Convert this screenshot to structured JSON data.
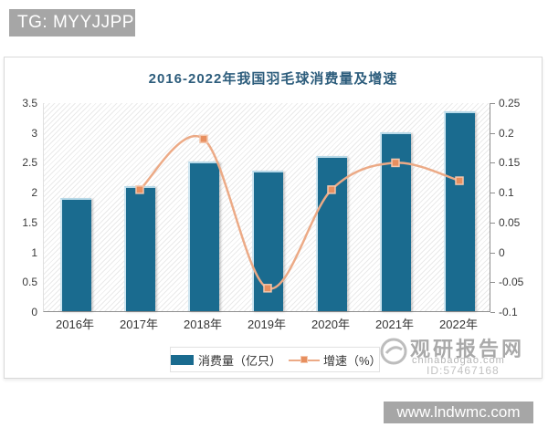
{
  "badges": {
    "top_left": "TG: MYYJJPP",
    "bottom_right": "www.lndwmc.com"
  },
  "chart_data": {
    "type": "bar+line combo",
    "title": "2016-2022年我国羽毛球消费量及增速",
    "categories": [
      "2016年",
      "2017年",
      "2018年",
      "2019年",
      "2020年",
      "2021年",
      "2022年"
    ],
    "series": [
      {
        "name": "消费量（亿只）",
        "type": "bar",
        "axis": "left",
        "color": "#1a6b8f",
        "values": [
          1.9,
          2.1,
          2.5,
          2.35,
          2.6,
          3.0,
          3.35
        ]
      },
      {
        "name": "增速（%）",
        "type": "line",
        "axis": "right",
        "color": "#ecaa86",
        "marker_fill": "#e78f5f",
        "marker_stroke": "#f4c7ad",
        "values": [
          null,
          0.105,
          0.19,
          -0.06,
          0.105,
          0.15,
          0.12
        ]
      }
    ],
    "left_axis": {
      "min": 0,
      "max": 3.5,
      "ticks": [
        "0",
        "0.5",
        "1",
        "1.5",
        "2",
        "2.5",
        "3",
        "3.5"
      ]
    },
    "right_axis": {
      "min": -0.1,
      "max": 0.25,
      "ticks": [
        "-0.1",
        "-0.05",
        "0",
        "0.05",
        "0.1",
        "0.15",
        "0.2",
        "0.25"
      ]
    },
    "grid": "hatched background, no gridlines",
    "legend_position": "bottom-center"
  },
  "watermark": {
    "site_name": "观研报告网",
    "site_url": "chinabaogao.com",
    "id_text": "ID:57467168"
  }
}
